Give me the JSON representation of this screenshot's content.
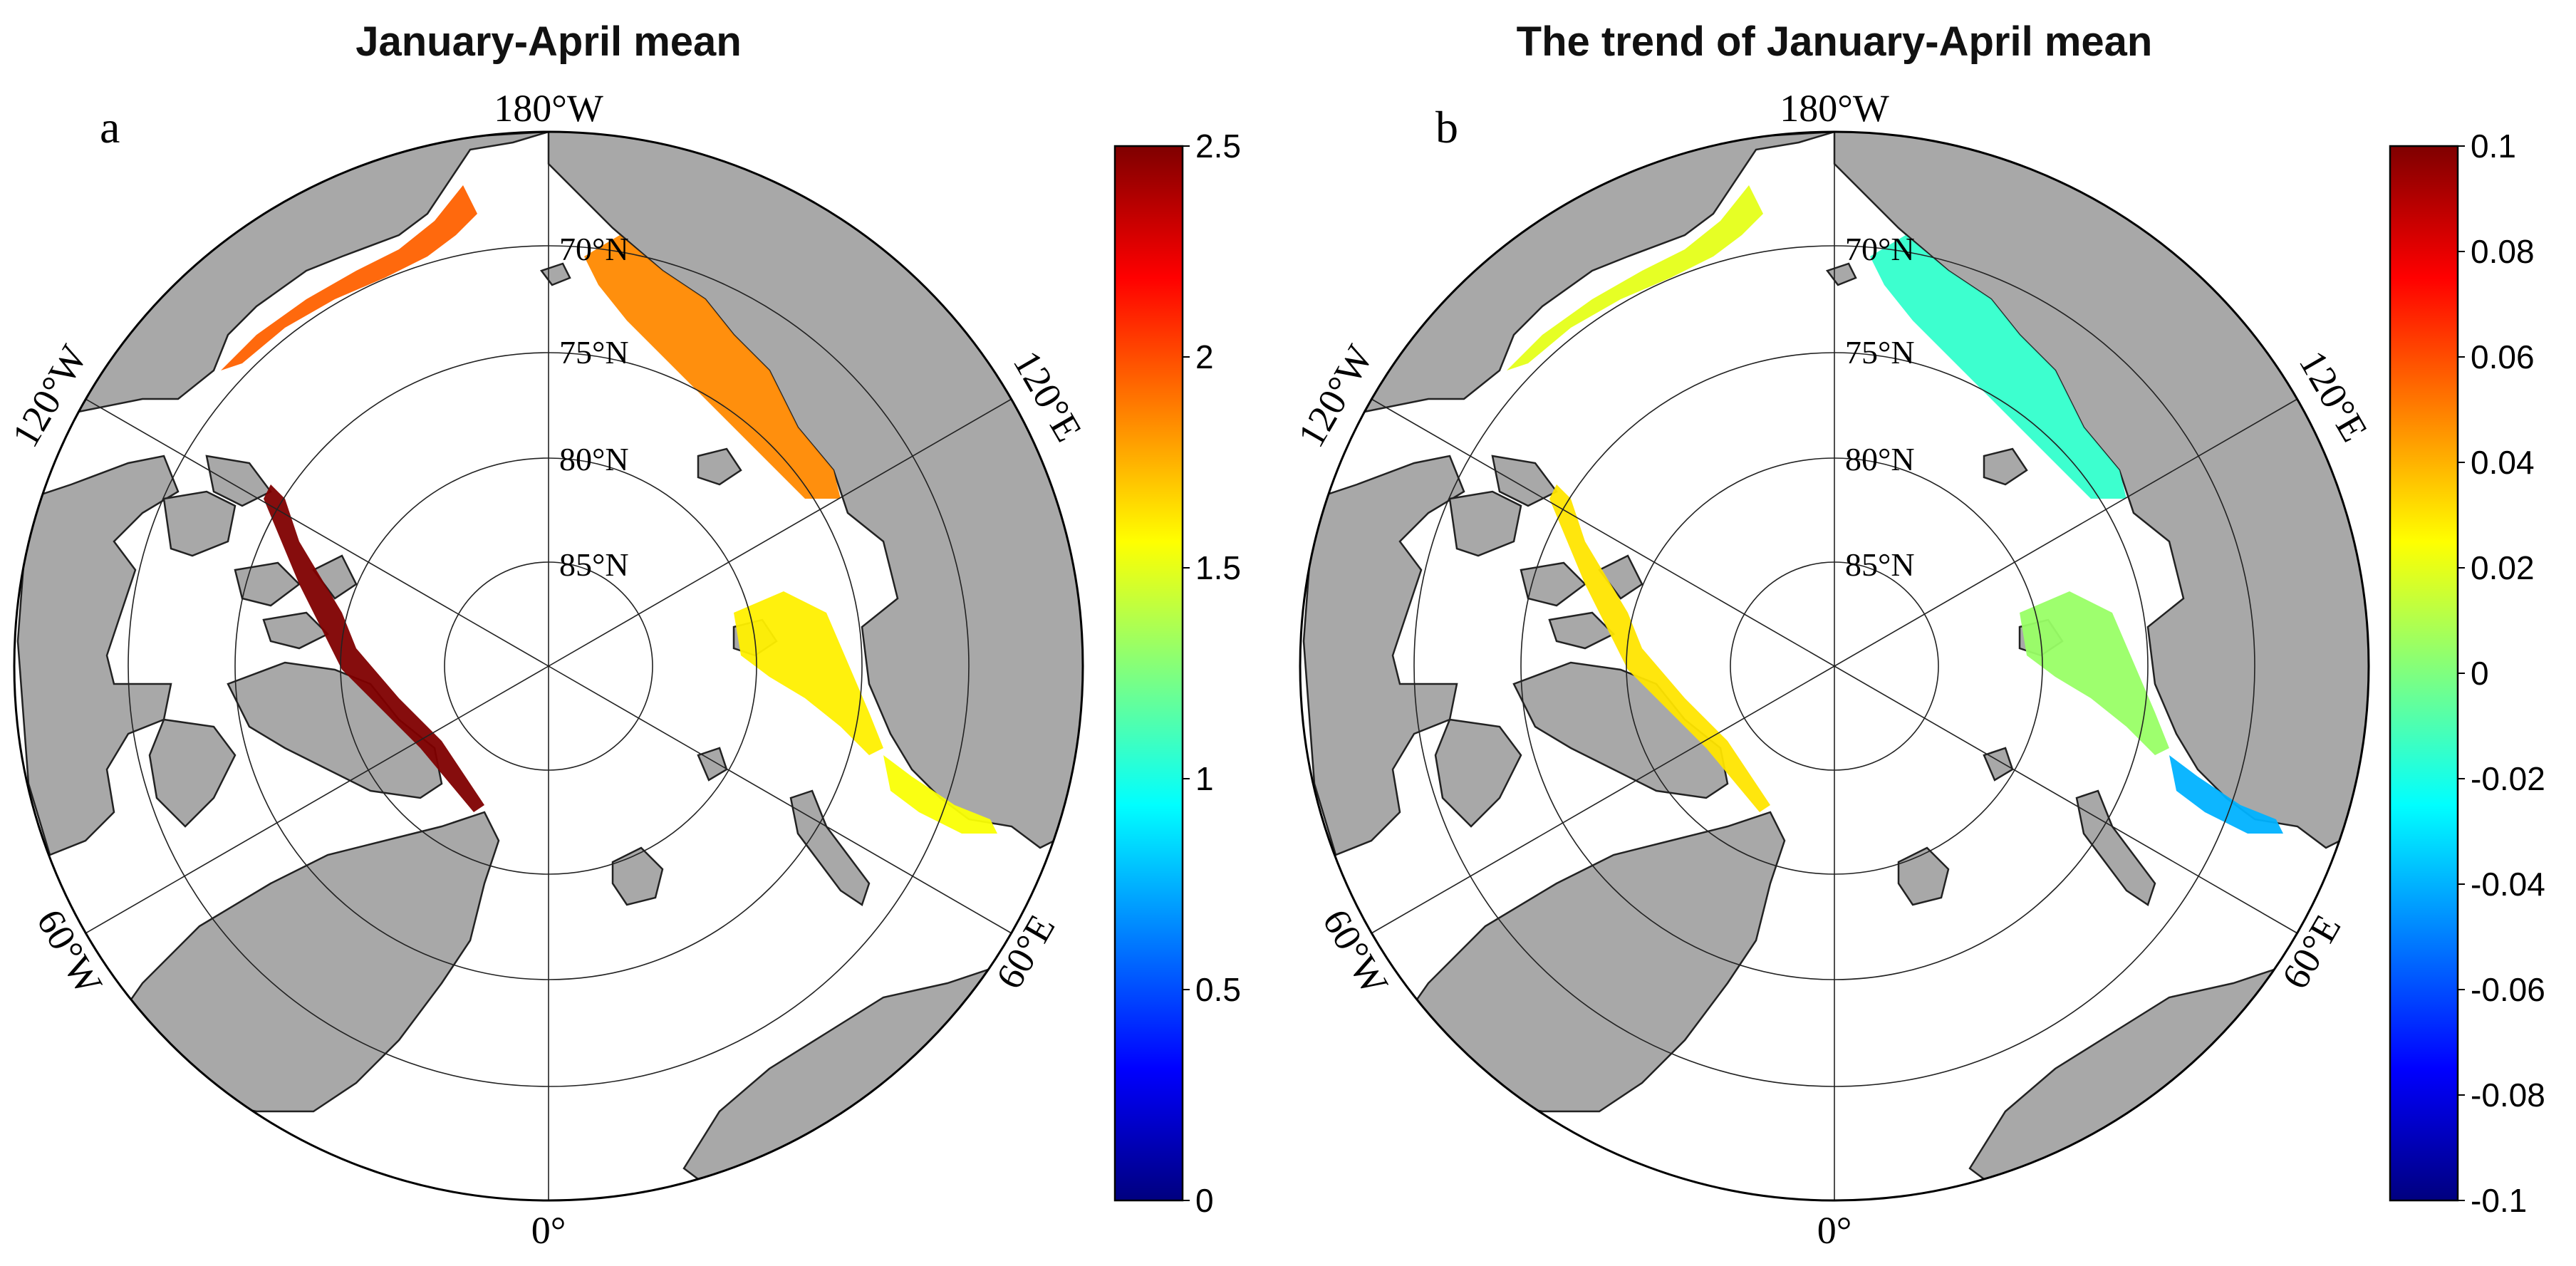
{
  "figure": {
    "projection": "north polar stereographic",
    "land_color": "#a8a8a8",
    "ocean_color": "#ffffff",
    "colormap": "jet",
    "colormap_stops": [
      "#00007f",
      "#0000ff",
      "#007fff",
      "#00ffff",
      "#7fff7f",
      "#ffff00",
      "#ff7f00",
      "#ff0000",
      "#7f0000"
    ]
  },
  "panels": [
    {
      "id": "a",
      "label": "a",
      "title": "January-April mean",
      "colorbar": {
        "min": 0,
        "max": 2.5,
        "ticks": [
          "0",
          "0.5",
          "1",
          "1.5",
          "2",
          "2.5"
        ]
      },
      "regions": [
        {
          "name": "east-siberian-laptev-shelf",
          "value": 1.85
        },
        {
          "name": "beaufort-chukchi-coast",
          "value": 1.95
        },
        {
          "name": "canadian-archipelago-greenland-coast",
          "value": 2.5
        },
        {
          "name": "kara-sea-shelf",
          "value": 1.6
        },
        {
          "name": "barents-pechora-coast",
          "value": 1.55
        }
      ]
    },
    {
      "id": "b",
      "label": "b",
      "title": "The trend of January-April mean",
      "colorbar": {
        "min": -0.1,
        "max": 0.1,
        "ticks": [
          "-0.1",
          "-0.08",
          "-0.06",
          "-0.04",
          "-0.02",
          "0",
          "0.02",
          "0.04",
          "0.06",
          "0.08",
          "0.1"
        ]
      },
      "regions": [
        {
          "name": "east-siberian-laptev-shelf",
          "value": -0.015
        },
        {
          "name": "beaufort-chukchi-coast",
          "value": 0.02
        },
        {
          "name": "canadian-archipelago-greenland-coast",
          "value": 0.03
        },
        {
          "name": "kara-sea-shelf",
          "value": 0.005
        },
        {
          "name": "barents-pechora-coast",
          "value": -0.04
        }
      ]
    }
  ],
  "map_labels": {
    "lon_180": "180°W",
    "lon_120w": "120°W",
    "lon_120e": "120°E",
    "lon_60w": "60°W",
    "lon_60e": "60°E",
    "lon_0": "0°",
    "lat_70": "70°N",
    "lat_75": "75°N",
    "lat_80": "80°N",
    "lat_85": "85°N"
  }
}
